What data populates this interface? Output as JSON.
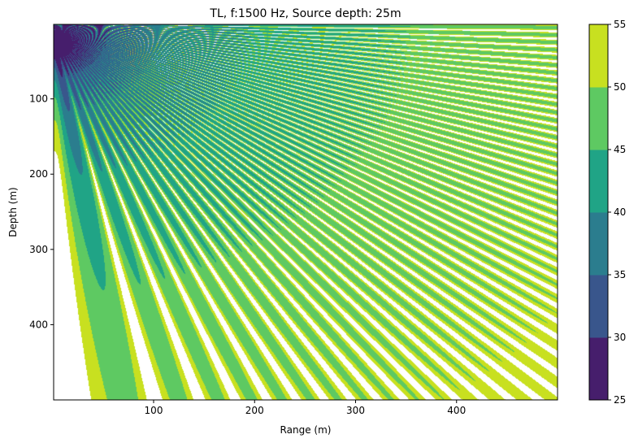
{
  "chart_data": {
    "type": "heatmap",
    "subtype": "filled-contour",
    "title": "TL, f:1500 Hz, Source depth: 25m",
    "xlabel": "Range (m)",
    "ylabel": "Depth (m)",
    "xlim": [
      1,
      500
    ],
    "ylim": [
      500,
      1
    ],
    "y_inverted": true,
    "x_ticks": [
      100,
      200,
      300,
      400
    ],
    "y_ticks": [
      100,
      200,
      300,
      400
    ],
    "grid": false,
    "colorbar": {
      "levels": [
        25,
        30,
        35,
        40,
        45,
        50,
        55
      ],
      "colors": [
        "#461e6c",
        "#39568c",
        "#2b7d8e",
        "#20a486",
        "#5ec962",
        "#c8e020"
      ],
      "tick_labels": [
        "25",
        "30",
        "35",
        "40",
        "45",
        "50",
        "55"
      ],
      "over_color": "#ffffff"
    },
    "source": {
      "frequency_hz": 1500,
      "depth_m": 25
    }
  }
}
